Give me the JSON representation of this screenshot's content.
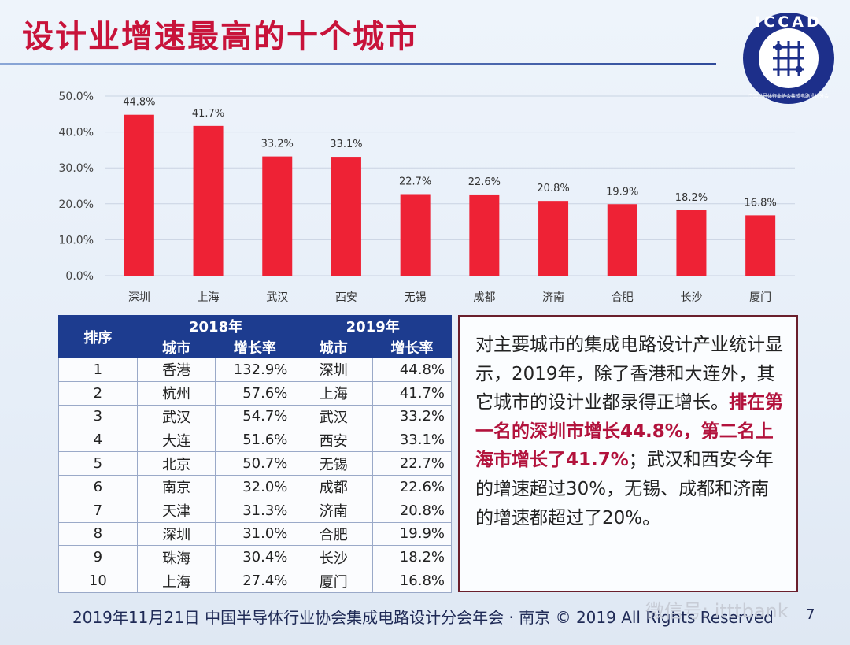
{
  "title": "设计业增速最高的十个城市",
  "logo": {
    "text": "ICCAD",
    "subtext": "中国半导体行业协会集成电路设计分会"
  },
  "colors": {
    "bar": "#ee2235",
    "title": "#c8133a",
    "header": "#1d3c8f",
    "highlight": "#b2123c"
  },
  "chart_data": {
    "type": "bar",
    "title": "",
    "categories": [
      "深圳",
      "上海",
      "武汉",
      "西安",
      "无锡",
      "成都",
      "济南",
      "合肥",
      "长沙",
      "厦门"
    ],
    "values": [
      44.8,
      41.7,
      33.2,
      33.1,
      22.7,
      22.6,
      20.8,
      19.9,
      18.2,
      16.8
    ],
    "value_labels": [
      "44.8%",
      "41.7%",
      "33.2%",
      "33.1%",
      "22.7%",
      "22.6%",
      "20.8%",
      "19.9%",
      "18.2%",
      "16.8%"
    ],
    "ylim": [
      0,
      50
    ],
    "yticks": [
      "0.0%",
      "10.0%",
      "20.0%",
      "30.0%",
      "40.0%",
      "50.0%"
    ],
    "xlabel": "",
    "ylabel": "",
    "grid": true
  },
  "table": {
    "header_rank": "排序",
    "group_2018": "2018年",
    "group_2019": "2019年",
    "col_city": "城市",
    "col_growth": "增长率",
    "rows": [
      {
        "rank": "1",
        "city2018": "香港",
        "g2018": "132.9%",
        "city2019": "深圳",
        "g2019": "44.8%"
      },
      {
        "rank": "2",
        "city2018": "杭州",
        "g2018": "57.6%",
        "city2019": "上海",
        "g2019": "41.7%"
      },
      {
        "rank": "3",
        "city2018": "武汉",
        "g2018": "54.7%",
        "city2019": "武汉",
        "g2019": "33.2%"
      },
      {
        "rank": "4",
        "city2018": "大连",
        "g2018": "51.6%",
        "city2019": "西安",
        "g2019": "33.1%"
      },
      {
        "rank": "5",
        "city2018": "北京",
        "g2018": "50.7%",
        "city2019": "无锡",
        "g2019": "22.7%"
      },
      {
        "rank": "6",
        "city2018": "南京",
        "g2018": "32.0%",
        "city2019": "成都",
        "g2019": "22.6%"
      },
      {
        "rank": "7",
        "city2018": "天津",
        "g2018": "31.3%",
        "city2019": "济南",
        "g2019": "20.8%"
      },
      {
        "rank": "8",
        "city2018": "深圳",
        "g2018": "31.0%",
        "city2019": "合肥",
        "g2019": "19.9%"
      },
      {
        "rank": "9",
        "city2018": "珠海",
        "g2018": "30.4%",
        "city2019": "长沙",
        "g2019": "18.2%"
      },
      {
        "rank": "10",
        "city2018": "上海",
        "g2018": "27.4%",
        "city2019": "厦门",
        "g2019": "16.8%"
      }
    ]
  },
  "summary": {
    "part1": "对主要城市的集成电路设计产业统计显示，2019年，除了香港和大连外，其它城市的设计业都录得正增长。",
    "highlight": "排在第一名的深圳市增长44.8%，第二名上海市增长了41.7%",
    "part2": "；武汉和西安今年的增速超过30%，无锡、成都和济南的增速都超过了20%。"
  },
  "footer": "2019年11月21日 中国半导体行业协会集成电路设计分会年会 · 南京 © 2019 All Rights Reserved",
  "watermark": "微信号: itttbank",
  "page_number": "7"
}
